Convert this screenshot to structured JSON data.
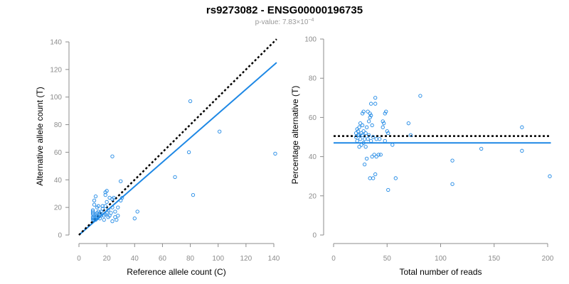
{
  "title": "rs9273082 - ENSG00000196735",
  "subtitle": "p-value: 7.83×10",
  "subtitle_exp": "−4",
  "colors": {
    "points": "#1e88e5",
    "fit": "#1e88e5",
    "reference": "#000000",
    "axis": "#8c8c8c"
  },
  "chart_data": [
    {
      "type": "scatter",
      "xlabel": "Reference allele count (C)",
      "ylabel": "Alternative allele count (T)",
      "xlim": [
        0,
        140
      ],
      "ylim": [
        0,
        140
      ],
      "xticks": [
        0,
        20,
        40,
        60,
        80,
        100,
        120,
        140
      ],
      "yticks": [
        0,
        20,
        40,
        60,
        80,
        100,
        120,
        140
      ],
      "fit_line": {
        "x": [
          0,
          142
        ],
        "y": [
          0,
          125
        ]
      },
      "reference_line": {
        "x": [
          0,
          142
        ],
        "y": [
          0,
          142
        ]
      },
      "points": [
        [
          10,
          11
        ],
        [
          10,
          12
        ],
        [
          10,
          13
        ],
        [
          10,
          15
        ],
        [
          10,
          16
        ],
        [
          10,
          17
        ],
        [
          10,
          18
        ],
        [
          11,
          11
        ],
        [
          11,
          12
        ],
        [
          11,
          14
        ],
        [
          11,
          22
        ],
        [
          11,
          25
        ],
        [
          12,
          11
        ],
        [
          12,
          13
        ],
        [
          12,
          15
        ],
        [
          12,
          28
        ],
        [
          13,
          12
        ],
        [
          13,
          14
        ],
        [
          13,
          16
        ],
        [
          13,
          20
        ],
        [
          14,
          13
        ],
        [
          14,
          17
        ],
        [
          14,
          21
        ],
        [
          15,
          12
        ],
        [
          15,
          15
        ],
        [
          15,
          16
        ],
        [
          16,
          14
        ],
        [
          16,
          17
        ],
        [
          17,
          19
        ],
        [
          17,
          21
        ],
        [
          18,
          11
        ],
        [
          18,
          14
        ],
        [
          19,
          15
        ],
        [
          19,
          21
        ],
        [
          19,
          29
        ],
        [
          19,
          31
        ],
        [
          20,
          16
        ],
        [
          20,
          24
        ],
        [
          20,
          32
        ],
        [
          21,
          13
        ],
        [
          21,
          18
        ],
        [
          22,
          14
        ],
        [
          22,
          27
        ],
        [
          23,
          16
        ],
        [
          24,
          10
        ],
        [
          24,
          20
        ],
        [
          24,
          26
        ],
        [
          24,
          57
        ],
        [
          25,
          27
        ],
        [
          26,
          13
        ],
        [
          26,
          17
        ],
        [
          27,
          11
        ],
        [
          28,
          14
        ],
        [
          28,
          20
        ],
        [
          30,
          25
        ],
        [
          30,
          39
        ],
        [
          31,
          27
        ],
        [
          40,
          12
        ],
        [
          42,
          17
        ],
        [
          69,
          42
        ],
        [
          79,
          60
        ],
        [
          80,
          97
        ],
        [
          82,
          29
        ],
        [
          101,
          75
        ],
        [
          141,
          59
        ]
      ]
    },
    {
      "type": "scatter",
      "xlabel": "Total number of reads",
      "ylabel": "Percentage alternative (T)",
      "xlim": [
        0,
        200
      ],
      "ylim": [
        0,
        100
      ],
      "xticks": [
        0,
        50,
        100,
        150,
        200
      ],
      "yticks": [
        0,
        20,
        40,
        60,
        80,
        100
      ],
      "fit_line": {
        "x": [
          0,
          203
        ],
        "y": [
          47,
          47
        ]
      },
      "reference_line": {
        "x": [
          0,
          203
        ],
        "y": [
          50.5,
          50.5
        ]
      },
      "points": [
        [
          21,
          52
        ],
        [
          21,
          50
        ],
        [
          22,
          54
        ],
        [
          22,
          48
        ],
        [
          23,
          53
        ],
        [
          23,
          51
        ],
        [
          24,
          55
        ],
        [
          24,
          51
        ],
        [
          24,
          45
        ],
        [
          25,
          57
        ],
        [
          25,
          49
        ],
        [
          26,
          46
        ],
        [
          26,
          52
        ],
        [
          27,
          51
        ],
        [
          27,
          56
        ],
        [
          27,
          62
        ],
        [
          28,
          63
        ],
        [
          28,
          47
        ],
        [
          28,
          53
        ],
        [
          29,
          49
        ],
        [
          29,
          36
        ],
        [
          30,
          45
        ],
        [
          30,
          52
        ],
        [
          31,
          55
        ],
        [
          31,
          39
        ],
        [
          32,
          63
        ],
        [
          32,
          49
        ],
        [
          33,
          51
        ],
        [
          33,
          58
        ],
        [
          34,
          62
        ],
        [
          34,
          60
        ],
        [
          34,
          29
        ],
        [
          35,
          61
        ],
        [
          35,
          67
        ],
        [
          35,
          48
        ],
        [
          36,
          40
        ],
        [
          36,
          56
        ],
        [
          37,
          29
        ],
        [
          37,
          50
        ],
        [
          38,
          41
        ],
        [
          39,
          70
        ],
        [
          39,
          67
        ],
        [
          39,
          31
        ],
        [
          40,
          40
        ],
        [
          40,
          49
        ],
        [
          42,
          41
        ],
        [
          43,
          49
        ],
        [
          44,
          41
        ],
        [
          46,
          58
        ],
        [
          46,
          55
        ],
        [
          47,
          57
        ],
        [
          48,
          48
        ],
        [
          48,
          62
        ],
        [
          49,
          63
        ],
        [
          50,
          53
        ],
        [
          51,
          52
        ],
        [
          51,
          23
        ],
        [
          55,
          46
        ],
        [
          58,
          29
        ],
        [
          70,
          57
        ],
        [
          72,
          51
        ],
        [
          81,
          71
        ],
        [
          111,
          26
        ],
        [
          111,
          38
        ],
        [
          138,
          44
        ],
        [
          176,
          43
        ],
        [
          176,
          55
        ],
        [
          202,
          30
        ]
      ]
    }
  ]
}
